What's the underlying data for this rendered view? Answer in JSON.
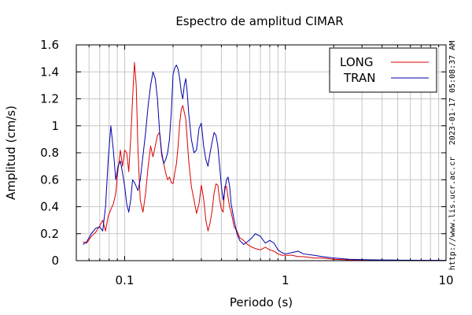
{
  "chart_data": {
    "type": "line",
    "title": "Espectro de amplitud CIMAR",
    "xlabel": "Periodo (s)",
    "ylabel": "Amplitud (cm/s)",
    "x_scale": "log",
    "xlim": [
      0.05,
      10
    ],
    "ylim": [
      0,
      1.6
    ],
    "x_ticks": [
      {
        "value": 0.1,
        "label": "0.1"
      },
      {
        "value": 1,
        "label": "1"
      },
      {
        "value": 10,
        "label": "10"
      }
    ],
    "y_ticks": [
      {
        "value": 0,
        "label": "0"
      },
      {
        "value": 0.2,
        "label": "0.2"
      },
      {
        "value": 0.4,
        "label": "0.4"
      },
      {
        "value": 0.6,
        "label": "0.6"
      },
      {
        "value": 0.8,
        "label": "0.8"
      },
      {
        "value": 1,
        "label": "1"
      },
      {
        "value": 1.2,
        "label": "1.2"
      },
      {
        "value": 1.4,
        "label": "1.4"
      },
      {
        "value": 1.6,
        "label": "1.6"
      }
    ],
    "grid": true,
    "legend_position": "top-right",
    "side_text_top": "2023-01-17 05:08:37 AM",
    "side_text_bottom": "http://www.lis.ucr.ac.cr",
    "series": [
      {
        "name": "LONG",
        "color": "#dd0000",
        "x": [
          0.055,
          0.058,
          0.062,
          0.066,
          0.07,
          0.073,
          0.076,
          0.079,
          0.082,
          0.085,
          0.088,
          0.091,
          0.094,
          0.097,
          0.1,
          0.103,
          0.106,
          0.109,
          0.112,
          0.115,
          0.118,
          0.121,
          0.125,
          0.13,
          0.135,
          0.14,
          0.145,
          0.15,
          0.155,
          0.16,
          0.165,
          0.17,
          0.175,
          0.18,
          0.185,
          0.19,
          0.195,
          0.2,
          0.205,
          0.21,
          0.215,
          0.22,
          0.225,
          0.23,
          0.235,
          0.24,
          0.245,
          0.25,
          0.26,
          0.27,
          0.28,
          0.29,
          0.3,
          0.31,
          0.32,
          0.33,
          0.34,
          0.35,
          0.36,
          0.37,
          0.38,
          0.39,
          0.4,
          0.41,
          0.42,
          0.43,
          0.44,
          0.45,
          0.46,
          0.48,
          0.5,
          0.52,
          0.55,
          0.58,
          0.62,
          0.65,
          0.7,
          0.75,
          0.8,
          0.85,
          0.9,
          0.95,
          1.0,
          1.1,
          1.2,
          1.3,
          1.5,
          1.7,
          2.0,
          2.5,
          3.0,
          4.0,
          5.0,
          7.0,
          10.0
        ],
        "values": [
          0.14,
          0.13,
          0.18,
          0.21,
          0.26,
          0.3,
          0.22,
          0.33,
          0.38,
          0.42,
          0.5,
          0.68,
          0.82,
          0.7,
          0.82,
          0.8,
          0.66,
          0.9,
          1.2,
          1.47,
          1.3,
          0.82,
          0.45,
          0.36,
          0.5,
          0.7,
          0.85,
          0.77,
          0.85,
          0.93,
          0.95,
          0.78,
          0.72,
          0.65,
          0.6,
          0.62,
          0.58,
          0.57,
          0.65,
          0.72,
          0.85,
          1.02,
          1.12,
          1.15,
          1.1,
          1.05,
          0.9,
          0.75,
          0.55,
          0.45,
          0.35,
          0.42,
          0.56,
          0.46,
          0.3,
          0.22,
          0.28,
          0.37,
          0.5,
          0.57,
          0.56,
          0.45,
          0.38,
          0.36,
          0.55,
          0.55,
          0.47,
          0.4,
          0.36,
          0.25,
          0.22,
          0.17,
          0.15,
          0.12,
          0.1,
          0.09,
          0.08,
          0.1,
          0.08,
          0.07,
          0.05,
          0.04,
          0.04,
          0.04,
          0.03,
          0.03,
          0.02,
          0.02,
          0.01,
          0.005,
          0.004,
          0.003,
          0.002,
          0.002,
          0.001
        ]
      },
      {
        "name": "TRAN",
        "color": "#0000aa",
        "x": [
          0.055,
          0.058,
          0.062,
          0.066,
          0.07,
          0.073,
          0.076,
          0.079,
          0.082,
          0.085,
          0.088,
          0.091,
          0.094,
          0.097,
          0.1,
          0.103,
          0.106,
          0.109,
          0.112,
          0.115,
          0.118,
          0.121,
          0.125,
          0.13,
          0.135,
          0.14,
          0.145,
          0.15,
          0.155,
          0.16,
          0.165,
          0.17,
          0.175,
          0.18,
          0.185,
          0.19,
          0.195,
          0.2,
          0.205,
          0.21,
          0.215,
          0.22,
          0.225,
          0.23,
          0.235,
          0.24,
          0.245,
          0.25,
          0.26,
          0.27,
          0.28,
          0.29,
          0.3,
          0.31,
          0.32,
          0.33,
          0.34,
          0.35,
          0.36,
          0.37,
          0.38,
          0.39,
          0.4,
          0.41,
          0.42,
          0.43,
          0.44,
          0.45,
          0.46,
          0.48,
          0.5,
          0.52,
          0.55,
          0.58,
          0.62,
          0.65,
          0.7,
          0.75,
          0.8,
          0.85,
          0.9,
          0.95,
          1.0,
          1.1,
          1.2,
          1.3,
          1.5,
          1.7,
          2.0,
          2.5,
          3.0,
          4.0,
          5.0,
          7.0,
          10.0
        ],
        "values": [
          0.12,
          0.14,
          0.2,
          0.24,
          0.25,
          0.22,
          0.4,
          0.75,
          1.0,
          0.82,
          0.6,
          0.7,
          0.74,
          0.65,
          0.55,
          0.42,
          0.36,
          0.45,
          0.6,
          0.58,
          0.55,
          0.52,
          0.6,
          0.78,
          0.95,
          1.15,
          1.3,
          1.4,
          1.35,
          1.2,
          0.95,
          0.8,
          0.72,
          0.75,
          0.8,
          0.9,
          1.1,
          1.38,
          1.43,
          1.45,
          1.42,
          1.35,
          1.25,
          1.2,
          1.3,
          1.35,
          1.25,
          1.1,
          0.9,
          0.8,
          0.82,
          0.98,
          1.02,
          0.85,
          0.75,
          0.7,
          0.8,
          0.88,
          0.95,
          0.93,
          0.85,
          0.7,
          0.55,
          0.45,
          0.52,
          0.6,
          0.62,
          0.55,
          0.42,
          0.3,
          0.2,
          0.15,
          0.12,
          0.14,
          0.17,
          0.2,
          0.18,
          0.13,
          0.15,
          0.13,
          0.08,
          0.06,
          0.05,
          0.06,
          0.07,
          0.05,
          0.04,
          0.03,
          0.02,
          0.01,
          0.007,
          0.005,
          0.004,
          0.003,
          0.002
        ]
      }
    ]
  }
}
